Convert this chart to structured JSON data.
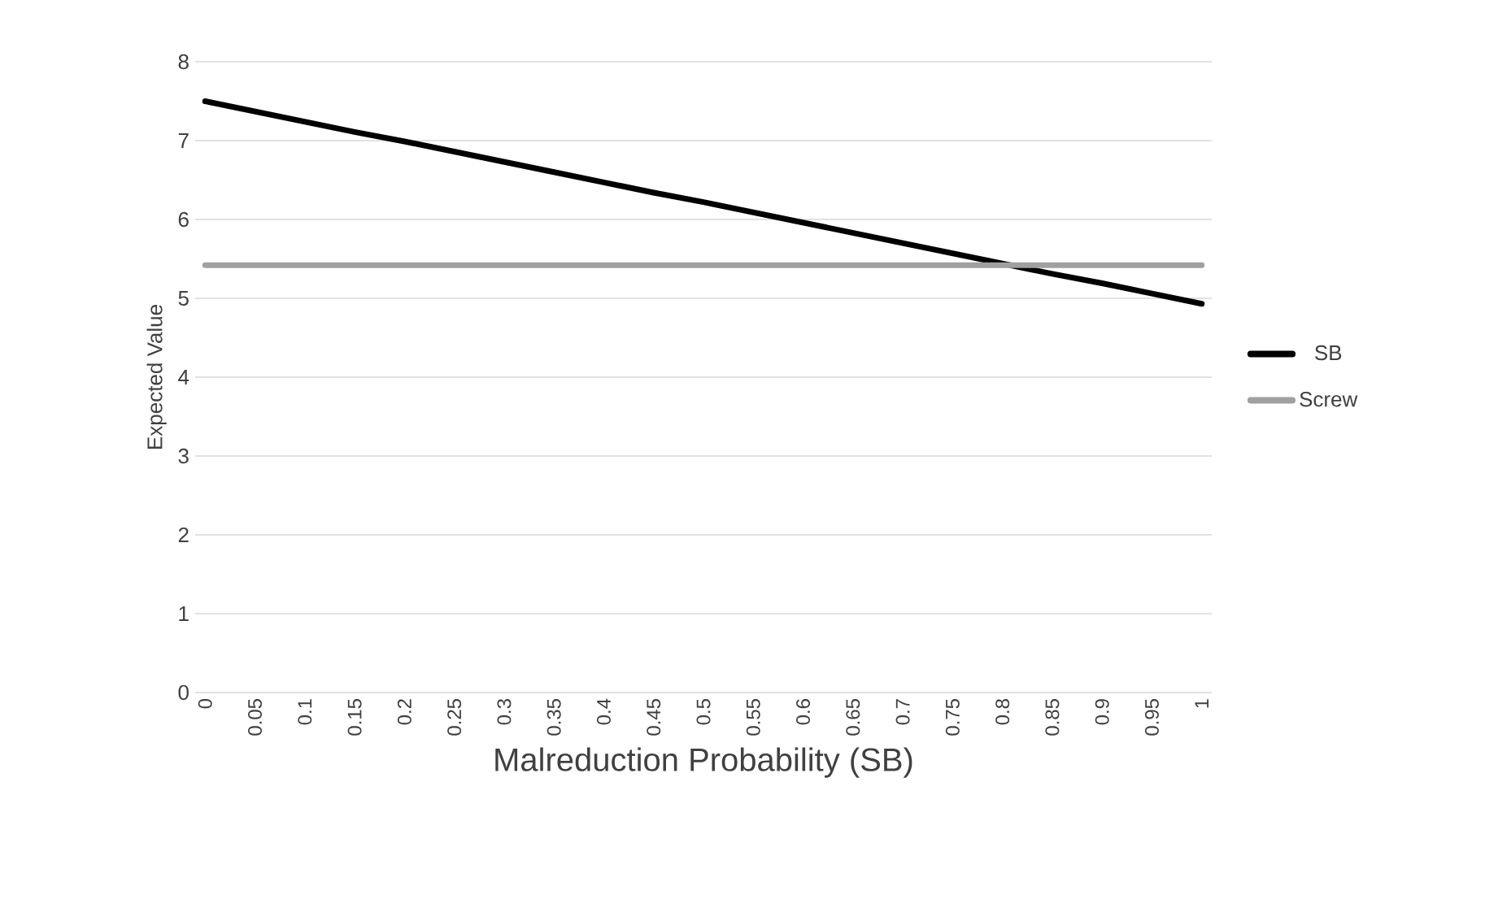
{
  "chart_data": {
    "type": "line",
    "xlabel": "Malreduction Probability (SB)",
    "ylabel": "Expected Value",
    "categories": [
      "0",
      "0.05",
      "0.1",
      "0.15",
      "0.2",
      "0.25",
      "0.3",
      "0.35",
      "0.4",
      "0.45",
      "0.5",
      "0.55",
      "0.6",
      "0.65",
      "0.7",
      "0.75",
      "0.8",
      "0.85",
      "0.9",
      "0.95",
      "1"
    ],
    "series": [
      {
        "name": "SB",
        "color": "#000000",
        "values": [
          7.5,
          7.37,
          7.24,
          7.11,
          6.99,
          6.86,
          6.73,
          6.6,
          6.47,
          6.34,
          6.22,
          6.09,
          5.96,
          5.83,
          5.7,
          5.57,
          5.44,
          5.31,
          5.19,
          5.06,
          4.93
        ]
      },
      {
        "name": "Screw",
        "color": "#a0a0a0",
        "values": [
          5.42,
          5.42,
          5.42,
          5.42,
          5.42,
          5.42,
          5.42,
          5.42,
          5.42,
          5.42,
          5.42,
          5.42,
          5.42,
          5.42,
          5.42,
          5.42,
          5.42,
          5.42,
          5.42,
          5.42,
          5.42
        ]
      }
    ],
    "ylim": [
      0,
      8
    ],
    "yticks": [
      0,
      1,
      2,
      3,
      4,
      5,
      6,
      7,
      8
    ],
    "grid": "y",
    "legend": "right",
    "marker": "none",
    "line_style": "solid"
  }
}
